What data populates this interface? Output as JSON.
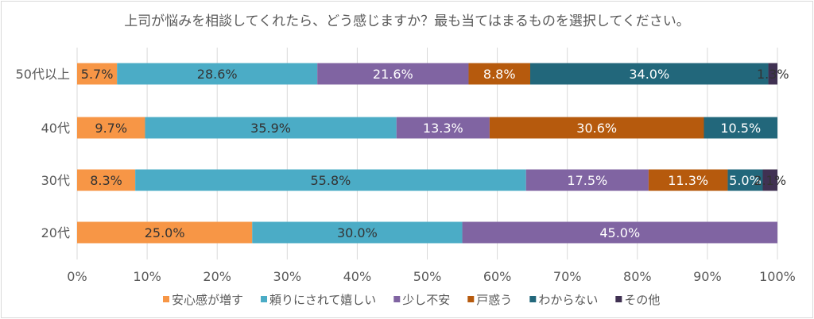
{
  "chart_data": {
    "type": "bar",
    "orientation": "horizontal",
    "stacked": true,
    "title": "上司が悩みを相談してくれたら、どう感じますか？最も当てはまるものを選択してください。",
    "categories": [
      "50代以上",
      "40代",
      "30代",
      "20代"
    ],
    "series": [
      {
        "name": "安心感が増す",
        "color": "#F79646",
        "label_color": "#333333",
        "values": [
          5.7,
          9.7,
          8.3,
          25.0
        ]
      },
      {
        "name": "頼りにされて嬉しい",
        "color": "#4BACC6",
        "label_color": "#333333",
        "values": [
          28.6,
          35.9,
          55.8,
          30.0
        ]
      },
      {
        "name": "少し不安",
        "color": "#8064A2",
        "label_color": "#ffffff",
        "values": [
          21.6,
          13.3,
          17.5,
          45.0
        ]
      },
      {
        "name": "戸惑う",
        "color": "#B65A0D",
        "label_color": "#ffffff",
        "values": [
          8.8,
          30.6,
          11.3,
          0
        ]
      },
      {
        "name": "わからない",
        "color": "#22677B",
        "label_color": "#ffffff",
        "values": [
          34.0,
          10.5,
          5.0,
          0
        ]
      },
      {
        "name": "その他",
        "color": "#403152",
        "label_color": "#333333",
        "values": [
          1.3,
          0,
          2.1,
          0
        ]
      }
    ],
    "xlim": [
      0,
      100
    ],
    "xticks": [
      "0%",
      "10%",
      "20%",
      "30%",
      "40%",
      "50%",
      "60%",
      "70%",
      "80%",
      "90%",
      "100%"
    ],
    "grid": true,
    "legend": "bottom"
  }
}
